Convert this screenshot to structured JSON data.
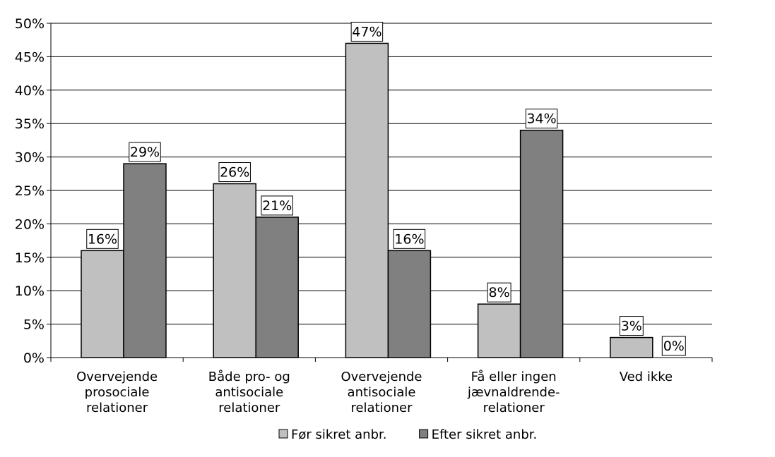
{
  "chart_data": {
    "type": "bar",
    "categories": [
      [
        "Overvejende",
        "prosociale",
        "relationer"
      ],
      [
        "Både pro- og",
        "antisociale",
        "relationer"
      ],
      [
        "Overvejende",
        "antisociale",
        "relationer"
      ],
      [
        "Få eller ingen",
        "jævnaldrende-",
        "relationer"
      ],
      [
        "Ved ikke"
      ]
    ],
    "series": [
      {
        "name": "Før sikret anbr.",
        "values": [
          16,
          26,
          47,
          8,
          3
        ],
        "labels": [
          "16%",
          "26%",
          "47%",
          "8%",
          "3%"
        ],
        "color": "#c0c0c0"
      },
      {
        "name": "Efter sikret anbr.",
        "values": [
          29,
          21,
          16,
          34,
          0
        ],
        "labels": [
          "29%",
          "21%",
          "16%",
          "34%",
          "0%"
        ],
        "color": "#808080"
      }
    ],
    "ylim": [
      0,
      50
    ],
    "yticks": [
      {
        "value": 0,
        "label": "0%"
      },
      {
        "value": 5,
        "label": "5%"
      },
      {
        "value": 10,
        "label": "10%"
      },
      {
        "value": 15,
        "label": "15%"
      },
      {
        "value": 20,
        "label": "20%"
      },
      {
        "value": 25,
        "label": "25%"
      },
      {
        "value": 30,
        "label": "30%"
      },
      {
        "value": 35,
        "label": "35%"
      },
      {
        "value": 40,
        "label": "40%"
      },
      {
        "value": 45,
        "label": "45%"
      },
      {
        "value": 50,
        "label": "50%"
      }
    ],
    "grid": true,
    "legend_position": "bottom",
    "title": "",
    "xlabel": "",
    "ylabel": ""
  }
}
